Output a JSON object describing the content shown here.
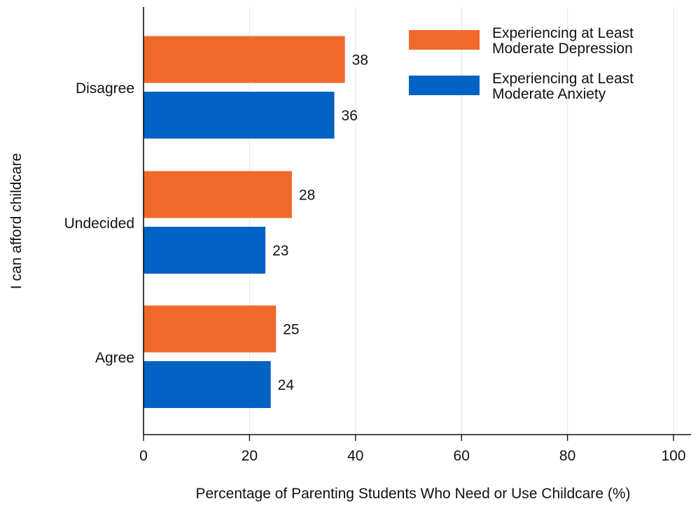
{
  "chart_data": {
    "type": "bar",
    "orientation": "horizontal",
    "title": "",
    "xlabel": "Percentage of Parenting Students Who Need or Use Childcare (%)",
    "ylabel": "I can afford childcare",
    "xlim": [
      0,
      100
    ],
    "xticks": [
      "0",
      "20",
      "40",
      "60",
      "80",
      "100"
    ],
    "categories": [
      "Disagree",
      "Undecided",
      "Agree"
    ],
    "series": [
      {
        "name": "Experiencing at Least Moderate Depression",
        "name_lines": [
          "Experiencing at Least",
          "Moderate Depression"
        ],
        "color": "#f0692a",
        "values": [
          38,
          28,
          25
        ]
      },
      {
        "name": "Experiencing at Least Moderate Anxiety",
        "name_lines": [
          "Experiencing at Least",
          "Moderate Anxiety"
        ],
        "color": "#0062c3",
        "values": [
          36,
          23,
          24
        ]
      }
    ],
    "grid": "vertical",
    "grid_color": "#e4eeee",
    "legend_position": "top-right",
    "data_labels": true
  }
}
